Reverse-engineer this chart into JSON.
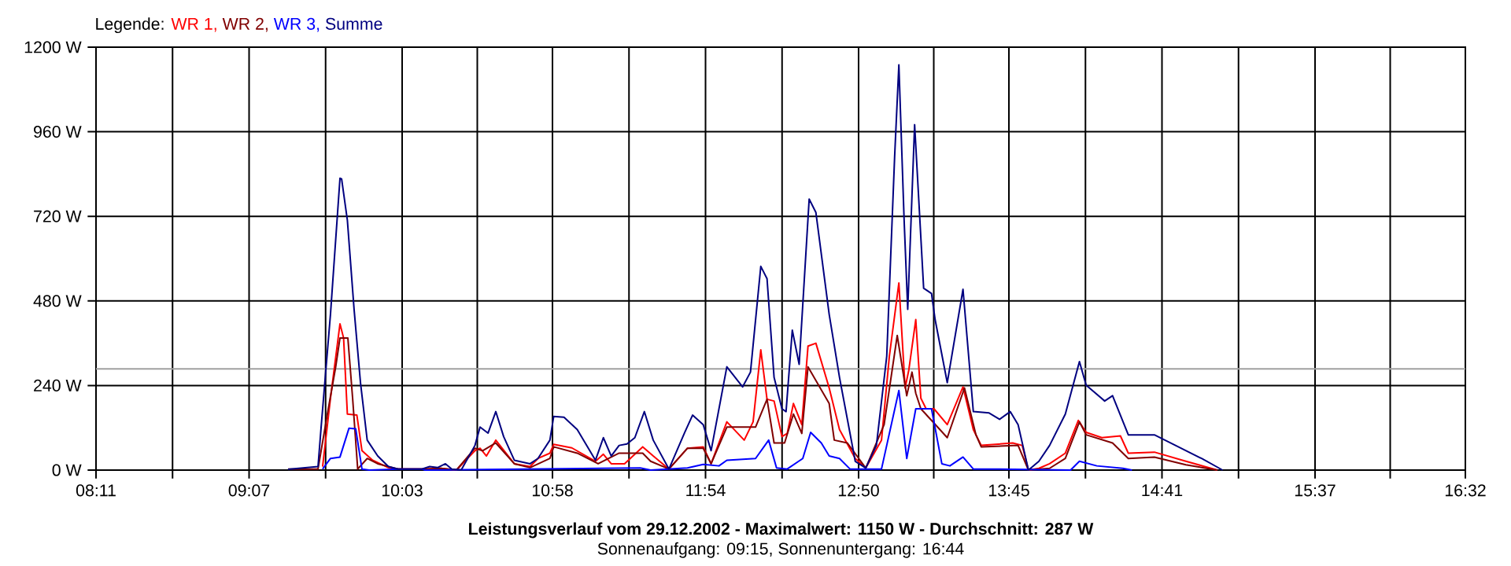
{
  "chart_data": {
    "type": "line",
    "title": "Leistungsverlauf vom 29.12.2002 - Maximalwert: 1150 W - Durchschnitt: 287 W",
    "subtitle": "Sonnenaufgang: 09:15, Sonnenuntergang: 16:44",
    "legend_title": "Legende:",
    "legend": "top left",
    "grid": true,
    "xlim": [
      8.1833,
      16.5333
    ],
    "ylim": [
      0,
      1200
    ],
    "xticks": [
      {
        "value": 8.1833,
        "label": "08:11"
      },
      {
        "value": 8.65,
        "label": null
      },
      {
        "value": 9.1167,
        "label": "09:07"
      },
      {
        "value": 9.5833,
        "label": null
      },
      {
        "value": 10.05,
        "label": "10:03"
      },
      {
        "value": 10.5083,
        "label": null
      },
      {
        "value": 10.9667,
        "label": "10:58"
      },
      {
        "value": 11.4333,
        "label": null
      },
      {
        "value": 11.9,
        "label": "11:54"
      },
      {
        "value": 12.3667,
        "label": null
      },
      {
        "value": 12.8333,
        "label": "12:50"
      },
      {
        "value": 13.2917,
        "label": null
      },
      {
        "value": 13.75,
        "label": "13:45"
      },
      {
        "value": 14.2167,
        "label": null
      },
      {
        "value": 14.6833,
        "label": "14:41"
      },
      {
        "value": 15.15,
        "label": null
      },
      {
        "value": 15.6167,
        "label": "15:37"
      },
      {
        "value": 16.075,
        "label": null
      },
      {
        "value": 16.5333,
        "label": "16:32"
      }
    ],
    "yticks": [
      {
        "value": 0,
        "label": "0 W"
      },
      {
        "value": 240,
        "label": "240 W"
      },
      {
        "value": 480,
        "label": "480 W"
      },
      {
        "value": 720,
        "label": "720 W"
      },
      {
        "value": 960,
        "label": "960 W"
      },
      {
        "value": 1200,
        "label": "1200 W"
      }
    ],
    "ref_lines": [
      {
        "axis": "y",
        "value": 287,
        "label": null,
        "color": "#a0a0a0"
      }
    ],
    "series": [
      {
        "name": "WR 1,",
        "color": "#ff0000",
        "x": [
          9.565,
          9.613,
          9.671,
          9.693,
          9.716,
          9.774,
          9.805,
          9.87,
          9.966,
          10.026,
          10.189,
          10.286,
          10.381,
          10.494,
          10.525,
          10.564,
          10.621,
          10.734,
          10.83,
          10.878,
          10.951,
          10.974,
          11.085,
          11.229,
          11.277,
          11.325,
          11.406,
          11.517,
          11.581,
          11.677,
          11.79,
          11.886,
          11.934,
          12.03,
          12.136,
          12.19,
          12.237,
          12.275,
          12.318,
          12.366,
          12.398,
          12.436,
          12.487,
          12.525,
          12.573,
          12.654,
          12.717,
          12.813,
          12.877,
          12.973,
          13.021,
          13.079,
          13.117,
          13.14,
          13.182,
          13.213,
          13.245,
          13.293,
          13.374,
          13.47,
          13.533,
          13.581,
          13.773,
          13.831,
          13.869,
          13.933,
          13.998,
          14.094,
          14.173,
          14.221,
          14.317,
          14.43,
          14.478,
          14.637,
          14.829,
          15.021
        ],
        "values": [
          10,
          204,
          415,
          375,
          159,
          156,
          55,
          28,
          7,
          3,
          3,
          5,
          0,
          55,
          62,
          40,
          85,
          18,
          10,
          33,
          48,
          73,
          63,
          25,
          45,
          18,
          18,
          66,
          40,
          3,
          62,
          66,
          18,
          137,
          85,
          137,
          341,
          201,
          196,
          95,
          104,
          189,
          129,
          352,
          360,
          233,
          115,
          33,
          6,
          85,
          323,
          531,
          233,
          285,
          427,
          204,
          174,
          174,
          129,
          236,
          115,
          70,
          77,
          70,
          0,
          5,
          18,
          48,
          141,
          107,
          92,
          97,
          48,
          51,
          25,
          0
        ]
      },
      {
        "name": "WR 2,",
        "color": "#800000",
        "x": [
          9.354,
          9.537,
          9.594,
          9.645,
          9.671,
          9.719,
          9.748,
          9.779,
          9.837,
          9.901,
          10.026,
          10.189,
          10.286,
          10.381,
          10.494,
          10.541,
          10.621,
          10.734,
          10.83,
          10.951,
          10.974,
          11.118,
          11.245,
          11.373,
          11.517,
          11.565,
          11.677,
          11.79,
          11.886,
          11.934,
          12.03,
          12.205,
          12.275,
          12.318,
          12.382,
          12.436,
          12.487,
          12.525,
          12.654,
          12.685,
          12.765,
          12.877,
          12.989,
          13.069,
          13.127,
          13.159,
          13.182,
          13.213,
          13.278,
          13.374,
          13.479,
          13.549,
          13.581,
          13.806,
          13.869,
          13.998,
          14.094,
          14.18,
          14.221,
          14.382,
          14.478,
          14.637,
          14.829,
          15.021
        ],
        "values": [
          3,
          3,
          159,
          293,
          375,
          375,
          204,
          3,
          33,
          18,
          3,
          3,
          5,
          0,
          62,
          55,
          77,
          18,
          7,
          33,
          66,
          48,
          18,
          48,
          48,
          25,
          3,
          62,
          62,
          18,
          122,
          122,
          201,
          77,
          77,
          159,
          104,
          293,
          189,
          85,
          77,
          6,
          129,
          382,
          211,
          278,
          218,
          174,
          141,
          92,
          233,
          100,
          66,
          70,
          0,
          5,
          33,
          137,
          100,
          77,
          33,
          37,
          15,
          0
        ]
      },
      {
        "name": "WR 3,",
        "color": "#0000ff",
        "x": [
          9.565,
          9.613,
          9.671,
          9.726,
          9.767,
          9.805,
          9.85,
          10.026,
          10.17,
          10.19,
          11.502,
          11.565,
          11.79,
          11.886,
          11.982,
          12.03,
          12.205,
          12.285,
          12.333,
          12.398,
          12.493,
          12.541,
          12.606,
          12.654,
          12.717,
          12.781,
          12.973,
          13.079,
          13.127,
          13.182,
          13.278,
          13.341,
          13.39,
          13.47,
          13.533,
          13.677,
          14.126,
          14.18,
          14.286,
          14.445,
          14.5
        ],
        "values": [
          3,
          33,
          37,
          119,
          117,
          3,
          0,
          3,
          3,
          0,
          6,
          0,
          6,
          16,
          12,
          28,
          33,
          85,
          6,
          3,
          33,
          107,
          77,
          40,
          33,
          3,
          3,
          226,
          33,
          174,
          174,
          18,
          12,
          37,
          3,
          3,
          0,
          25,
          12,
          5,
          0
        ]
      },
      {
        "name": "Summe",
        "color": "#000080",
        "x": [
          9.354,
          9.537,
          9.556,
          9.613,
          9.671,
          9.681,
          9.716,
          9.757,
          9.796,
          9.837,
          9.901,
          9.966,
          10.026,
          10.17,
          10.218,
          10.266,
          10.314,
          10.353,
          10.41,
          10.494,
          10.525,
          10.574,
          10.621,
          10.669,
          10.734,
          10.83,
          10.878,
          10.951,
          10.974,
          11.037,
          11.118,
          11.229,
          11.277,
          11.325,
          11.373,
          11.421,
          11.469,
          11.527,
          11.581,
          11.677,
          11.773,
          11.821,
          11.886,
          11.934,
          12.03,
          12.126,
          12.174,
          12.237,
          12.275,
          12.318,
          12.366,
          12.391,
          12.429,
          12.471,
          12.532,
          12.573,
          12.654,
          12.717,
          12.813,
          12.877,
          12.942,
          13.005,
          13.053,
          13.079,
          13.111,
          13.133,
          13.175,
          13.23,
          13.278,
          13.3,
          13.374,
          13.47,
          13.533,
          13.629,
          13.693,
          13.758,
          13.806,
          13.869,
          13.933,
          13.998,
          14.094,
          14.18,
          14.221,
          14.334,
          14.382,
          14.478,
          14.637,
          14.766,
          14.925,
          15.053
        ],
        "values": [
          2,
          10,
          122,
          442,
          828,
          826,
          709,
          456,
          248,
          85,
          40,
          10,
          3,
          3,
          10,
          7,
          18,
          3,
          0,
          70,
          122,
          105,
          166,
          95,
          28,
          18,
          33,
          85,
          152,
          150,
          115,
          28,
          92,
          40,
          70,
          74,
          92,
          166,
          85,
          3,
          107,
          156,
          129,
          55,
          293,
          236,
          278,
          578,
          543,
          263,
          174,
          166,
          397,
          300,
          769,
          731,
          442,
          263,
          25,
          6,
          70,
          323,
          888,
          1150,
          709,
          456,
          980,
          516,
          501,
          427,
          248,
          513,
          166,
          162,
          144,
          166,
          129,
          0,
          25,
          70,
          159,
          308,
          241,
          196,
          211,
          100,
          100,
          70,
          33,
          0
        ]
      }
    ]
  }
}
